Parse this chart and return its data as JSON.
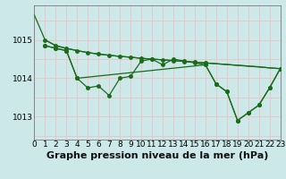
{
  "background_color": "#cce8e8",
  "grid_color": "#e8c8c8",
  "line_color": "#1a6b1a",
  "title": "Graphe pression niveau de la mer (hPa)",
  "xlim": [
    0,
    23
  ],
  "ylim": [
    1012.4,
    1015.9
  ],
  "yticks": [
    1013,
    1014,
    1015
  ],
  "xtick_labels": [
    "0",
    "1",
    "2",
    "3",
    "4",
    "5",
    "6",
    "7",
    "8",
    "9",
    "10",
    "11",
    "12",
    "13",
    "14",
    "15",
    "16",
    "17",
    "18",
    "19",
    "20",
    "21",
    "22",
    "23"
  ],
  "lines": [
    {
      "x": [
        0,
        1,
        2,
        3,
        4,
        5,
        6,
        7,
        8,
        9,
        10,
        11,
        12,
        13,
        14,
        15,
        16,
        17,
        18,
        19,
        20,
        21,
        22,
        23
      ],
      "y": [
        1015.65,
        1015.0,
        1014.85,
        1014.78,
        1014.72,
        1014.67,
        1014.63,
        1014.6,
        1014.57,
        1014.55,
        1014.52,
        1014.5,
        1014.48,
        1014.46,
        1014.44,
        1014.42,
        1014.4,
        1014.38,
        1014.36,
        1014.34,
        1014.32,
        1014.3,
        1014.27,
        1014.25
      ],
      "marker": false
    },
    {
      "x": [
        1,
        2,
        3,
        4,
        5,
        6,
        7,
        8,
        9,
        10,
        11,
        12,
        13,
        14,
        15,
        16,
        23
      ],
      "y": [
        1015.0,
        1014.85,
        1014.78,
        1014.72,
        1014.67,
        1014.63,
        1014.6,
        1014.57,
        1014.55,
        1014.52,
        1014.5,
        1014.48,
        1014.46,
        1014.44,
        1014.42,
        1014.4,
        1014.25
      ],
      "marker": true
    },
    {
      "x": [
        1,
        2,
        3,
        4,
        5,
        6,
        7,
        8,
        9,
        10,
        11,
        12,
        13,
        14,
        15,
        16,
        17,
        18,
        19,
        20,
        21,
        22,
        23
      ],
      "y": [
        1014.85,
        1014.78,
        1014.72,
        1014.0,
        1013.75,
        1013.8,
        1013.55,
        1014.0,
        1014.05,
        1014.45,
        1014.5,
        1014.35,
        1014.5,
        1014.45,
        1014.4,
        1014.35,
        1013.85,
        1013.65,
        1012.9,
        1013.1,
        1013.3,
        1013.75,
        1014.25
      ],
      "marker": true
    },
    {
      "x": [
        1,
        2,
        3,
        4,
        16,
        17,
        18,
        19,
        20,
        21,
        22,
        23
      ],
      "y": [
        1014.85,
        1014.78,
        1014.72,
        1014.0,
        1014.35,
        1013.85,
        1013.65,
        1012.9,
        1013.1,
        1013.3,
        1013.75,
        1014.25
      ],
      "marker": true
    }
  ],
  "title_fontsize": 8,
  "tick_fontsize": 6.5,
  "marker_size": 2.5,
  "line_width": 0.9
}
